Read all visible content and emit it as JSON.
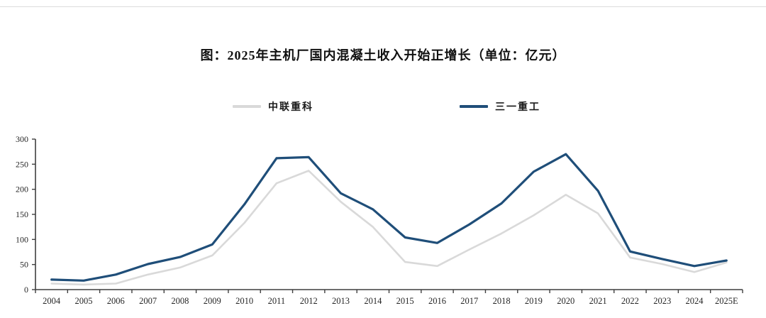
{
  "page": {
    "title": "图：2025年主机厂国内混凝土收入开始正增长（单位：亿元）"
  },
  "legend": [
    {
      "label": "中联重科",
      "color": "#d9d9d9"
    },
    {
      "label": "三一重工",
      "color": "#1f4e79"
    }
  ],
  "chart_data": {
    "type": "line",
    "title": "图：2025年主机厂国内混凝土收入开始正增长（单位：亿元）",
    "unit": "亿元",
    "categories": [
      "2004",
      "2005",
      "2006",
      "2007",
      "2008",
      "2009",
      "2010",
      "2011",
      "2012",
      "2013",
      "2014",
      "2015",
      "2016",
      "2017",
      "2018",
      "2019",
      "2020",
      "2021",
      "2022",
      "2023",
      "2024",
      "2025E"
    ],
    "series": [
      {
        "name": "中联重科",
        "color": "#d9d9d9",
        "values": [
          12,
          10,
          12,
          30,
          44,
          68,
          133,
          212,
          237,
          175,
          125,
          55,
          47,
          80,
          112,
          148,
          189,
          152,
          64,
          51,
          35,
          54
        ]
      },
      {
        "name": "三一重工",
        "color": "#1f4e79",
        "values": [
          20,
          18,
          30,
          51,
          65,
          90,
          170,
          262,
          264,
          192,
          160,
          104,
          93,
          130,
          172,
          235,
          270,
          197,
          76,
          61,
          47,
          58
        ]
      }
    ],
    "ylim": [
      0,
      300
    ],
    "ytick_step": 50,
    "yticks": [
      0,
      50,
      100,
      150,
      200,
      250,
      300
    ],
    "grid": false,
    "legend_position": "top"
  }
}
